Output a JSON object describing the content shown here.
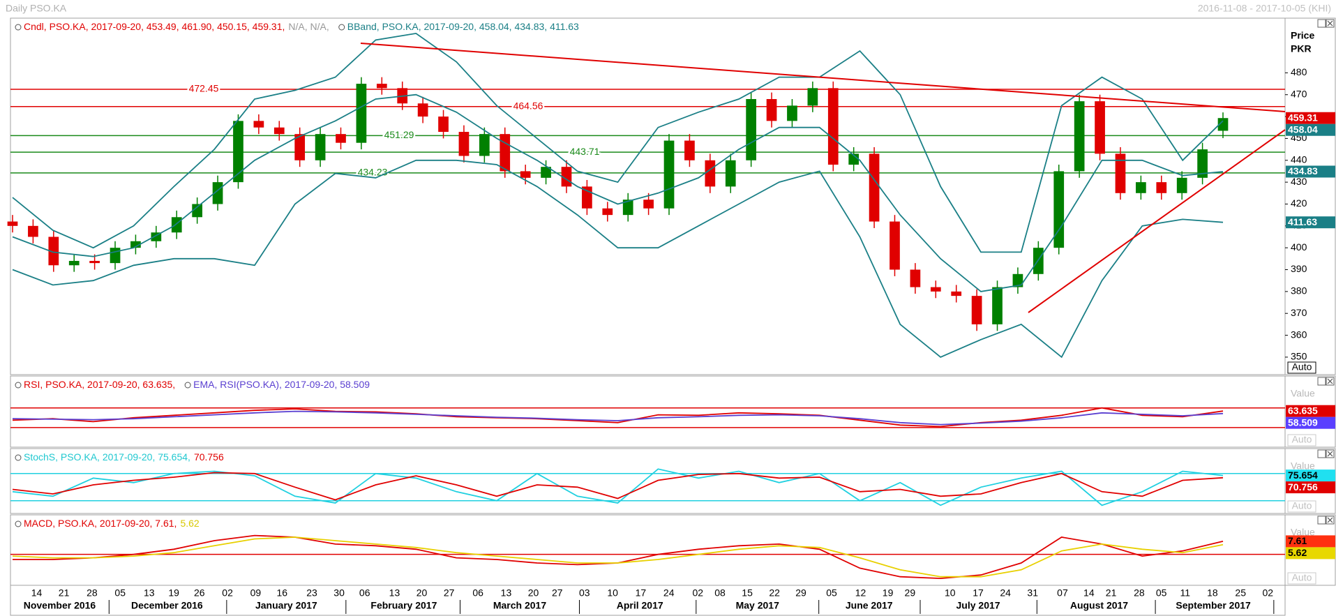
{
  "header": {
    "title": "Daily PSO.KA",
    "range": "2016-11-08 - 2017-10-05 (KHI)"
  },
  "chart_data": [
    {
      "type": "candlestick",
      "legend": [
        [
          {
            "text": "Cndl, PSO.KA, 2017-09-20, 453.49, 461.90, 450.15, 459.31,",
            "color": "#e00000"
          },
          {
            "text": "N/A, N/A,",
            "color": "#999999"
          }
        ],
        [
          {
            "text": "BBand, PSO.KA, 2017-09-20, 458.04, 434.83, 411.63",
            "color": "#1a7f86"
          }
        ]
      ],
      "axis_title": [
        "Price",
        "PKR"
      ],
      "auto": "Auto",
      "ylim": [
        342,
        505
      ],
      "yticks": [
        350,
        360,
        370,
        380,
        390,
        400,
        410,
        420,
        430,
        440,
        450,
        460,
        470,
        480
      ],
      "up_color": "#008000",
      "down_color": "#e00000",
      "open": [
        412,
        410,
        405,
        392,
        394,
        393,
        400,
        403,
        407,
        414,
        420,
        430,
        458,
        455,
        452,
        440,
        452,
        448,
        475,
        473,
        466,
        460,
        453,
        442,
        452,
        435,
        432,
        437,
        428,
        418,
        415,
        422,
        418,
        449,
        440,
        428,
        440,
        468,
        458,
        465,
        473,
        438,
        443,
        412,
        390,
        382,
        380,
        378,
        365,
        382,
        388,
        400,
        435,
        467,
        443,
        425,
        430,
        425,
        432,
        453.49
      ],
      "high": [
        415,
        413,
        408,
        397,
        397,
        403,
        406,
        410,
        417,
        423,
        433,
        461,
        461,
        458,
        455,
        455,
        455,
        478,
        478,
        476,
        469,
        463,
        456,
        455,
        455,
        438,
        440,
        440,
        431,
        421,
        425,
        425,
        452,
        452,
        443,
        443,
        471,
        471,
        468,
        476,
        476,
        446,
        446,
        415,
        393,
        385,
        383,
        381,
        385,
        391,
        403,
        438,
        470,
        470,
        446,
        433,
        433,
        435,
        448,
        461.9
      ],
      "low": [
        407,
        402,
        389,
        389,
        390,
        390,
        397,
        400,
        404,
        411,
        417,
        427,
        452,
        449,
        437,
        437,
        445,
        445,
        470,
        463,
        457,
        450,
        439,
        439,
        432,
        429,
        429,
        425,
        415,
        412,
        412,
        415,
        415,
        437,
        425,
        425,
        437,
        455,
        455,
        462,
        435,
        435,
        409,
        387,
        379,
        377,
        375,
        362,
        362,
        379,
        385,
        397,
        432,
        440,
        422,
        422,
        422,
        422,
        429,
        450.15
      ],
      "close": [
        410,
        405,
        392,
        394,
        393,
        400,
        403,
        407,
        414,
        420,
        430,
        458,
        455,
        452,
        440,
        452,
        448,
        475,
        473,
        466,
        460,
        453,
        442,
        452,
        435,
        432,
        437,
        428,
        418,
        415,
        422,
        418,
        449,
        440,
        428,
        440,
        468,
        458,
        465,
        473,
        438,
        443,
        412,
        390,
        382,
        380,
        378,
        365,
        382,
        388,
        400,
        435,
        467,
        443,
        425,
        430,
        425,
        432,
        445,
        459.31
      ],
      "series": [
        {
          "color": "#1a7f86",
          "values": [
            423,
            408,
            400,
            410,
            428,
            445,
            468,
            472,
            478,
            495,
            498,
            485,
            465,
            450,
            435,
            430,
            455,
            462,
            468,
            478,
            478,
            490,
            470,
            428,
            398,
            398,
            465,
            478,
            468,
            440,
            458.04
          ]
        },
        {
          "color": "#1a7f86",
          "values": [
            405,
            398,
            396,
            400,
            410,
            425,
            440,
            450,
            458,
            468,
            470,
            462,
            450,
            440,
            428,
            420,
            425,
            432,
            445,
            455,
            455,
            440,
            415,
            395,
            380,
            383,
            410,
            440,
            440,
            433,
            434.83
          ]
        },
        {
          "color": "#1a7f86",
          "values": [
            390,
            383,
            385,
            392,
            395,
            395,
            392,
            420,
            434,
            432,
            440,
            440,
            438,
            428,
            415,
            400,
            400,
            410,
            420,
            430,
            435,
            405,
            365,
            350,
            358,
            365,
            350,
            385,
            410,
            413,
            411.63
          ]
        }
      ],
      "level_labels": true,
      "levels": [
        {
          "value": 472.45,
          "color": "#e00000"
        },
        {
          "value": 464.56,
          "color": "#e00000"
        },
        {
          "value": 451.29,
          "color": "#1a8a1a"
        },
        {
          "value": 443.71,
          "color": "#1a8a1a"
        },
        {
          "value": 434.23,
          "color": "#1a8a1a"
        }
      ],
      "tags": [
        {
          "value": 459.31,
          "color": "#e00000",
          "text_color": "#ffffff"
        },
        {
          "value": 458.04,
          "color": "#1a7f86",
          "text_color": "#ffffff"
        },
        {
          "value": 434.83,
          "color": "#1a7f86",
          "text_color": "#ffffff"
        },
        {
          "value": 411.63,
          "color": "#1a7f86",
          "text_color": "#ffffff"
        }
      ]
    },
    {
      "type": "line",
      "legend": [
        [
          {
            "text": "RSI, PSO.KA, 2017-09-20, 63.635,",
            "color": "#e00000"
          }
        ],
        [
          {
            "text": "EMA, RSI(PSO.KA), 2017-09-20, 58.509",
            "color": "#5a3fd0"
          }
        ]
      ],
      "axis_title": [
        "Value"
      ],
      "auto": "Auto",
      "ylim": [
        -10,
        135
      ],
      "series": [
        {
          "color": "#e00000",
          "values": [
            45,
            48,
            42,
            50,
            55,
            60,
            65,
            68,
            63,
            62,
            58,
            52,
            50,
            48,
            44,
            40,
            56,
            55,
            60,
            58,
            55,
            45,
            35,
            32,
            40,
            45,
            55,
            70,
            55,
            52,
            63.635
          ]
        },
        {
          "color": "#5a3fd0",
          "values": [
            48,
            47,
            46,
            48,
            52,
            56,
            60,
            63,
            62,
            60,
            57,
            54,
            51,
            49,
            46,
            44,
            50,
            52,
            55,
            56,
            54,
            48,
            40,
            36,
            39,
            43,
            50,
            60,
            57,
            54,
            58.509
          ]
        }
      ],
      "levels": [
        {
          "value": 70,
          "color": "#e00000"
        },
        {
          "value": 30,
          "color": "#e00000"
        }
      ],
      "tags": [
        {
          "value": 63.635,
          "color": "#e00000",
          "text_color": "#ffffff"
        },
        {
          "value": 58.509,
          "color": "#5a3fff",
          "text_color": "#ffffff"
        }
      ]
    },
    {
      "type": "line",
      "legend": [
        [
          {
            "text": "StochS, PSO.KA, 2017-09-20, 75.654,",
            "color": "#20c8d0"
          },
          {
            "text": "70.756",
            "color": "#e00000"
          }
        ]
      ],
      "axis_title": [
        "Value"
      ],
      "auto": "Auto",
      "ylim": [
        -8,
        135
      ],
      "series": [
        {
          "color": "#20d0e0",
          "values": [
            40,
            30,
            70,
            60,
            80,
            85,
            75,
            30,
            15,
            80,
            70,
            40,
            20,
            80,
            30,
            15,
            90,
            70,
            85,
            60,
            80,
            20,
            60,
            10,
            50,
            70,
            85,
            10,
            40,
            85,
            75.654
          ]
        },
        {
          "color": "#e00000",
          "values": [
            45,
            35,
            55,
            65,
            72,
            82,
            80,
            50,
            22,
            55,
            75,
            55,
            30,
            55,
            50,
            25,
            65,
            78,
            80,
            70,
            72,
            40,
            45,
            30,
            35,
            60,
            80,
            40,
            30,
            65,
            70.756
          ]
        }
      ],
      "levels": [
        {
          "value": 80,
          "color": "#20d0e0"
        },
        {
          "value": 20,
          "color": "#20d0e0"
        }
      ],
      "tags": [
        {
          "value": 75.654,
          "color": "#20e0f0",
          "text_color": "#000000"
        },
        {
          "value": 70.756,
          "color": "#e00000",
          "text_color": "#ffffff"
        }
      ]
    },
    {
      "type": "line",
      "legend": [
        [
          {
            "text": "MACD, PSO.KA, 2017-09-20, 7.61,",
            "color": "#e00000"
          },
          {
            "text": "5.62",
            "color": "#d8c800"
          }
        ]
      ],
      "axis_title": [
        "Value"
      ],
      "auto": "Auto",
      "ylim": [
        -18,
        23
      ],
      "series": [
        {
          "color": "#e00000",
          "values": [
            -3,
            -3,
            -2,
            0,
            3,
            8,
            11,
            10,
            6,
            5,
            3,
            -2,
            -3,
            -5,
            -6,
            -5,
            0,
            3,
            5,
            6,
            3,
            -8,
            -13,
            -14,
            -12,
            -5,
            10,
            6,
            -1,
            2,
            7.61
          ]
        },
        {
          "color": "#e8d000",
          "values": [
            -1,
            -2,
            -2,
            -1,
            1,
            5,
            9,
            10,
            8,
            6,
            4,
            1,
            -1,
            -3,
            -5,
            -5,
            -3,
            0,
            3,
            5,
            4,
            -2,
            -9,
            -13,
            -13,
            -9,
            2,
            6,
            3,
            1,
            5.62
          ]
        }
      ],
      "levels": [
        {
          "value": 0,
          "color": "#e00000"
        }
      ],
      "tags": [
        {
          "value": 7.61,
          "color": "#ff3010",
          "text_color": "#000000"
        },
        {
          "value": 5.62,
          "color": "#e8d800",
          "text_color": "#000000"
        }
      ]
    }
  ],
  "x_axis": {
    "days": [
      "14",
      "21",
      "28",
      "05",
      "13",
      "19",
      "26",
      "02",
      "09",
      "16",
      "23",
      "30",
      "06",
      "13",
      "20",
      "27",
      "06",
      "13",
      "20",
      "27",
      "03",
      "10",
      "17",
      "24",
      "02",
      "08",
      "15",
      "22",
      "29",
      "05",
      "12",
      "19",
      "29",
      "10",
      "17",
      "24",
      "31",
      "07",
      "14",
      "21",
      "28",
      "05",
      "11",
      "18",
      "25",
      "02"
    ],
    "months": [
      "November 2016",
      "December 2016",
      "January 2017",
      "February 2017",
      "March 2017",
      "April 2017",
      "May 2017",
      "June 2017",
      "July 2017",
      "August 2017",
      "September 2017"
    ]
  }
}
